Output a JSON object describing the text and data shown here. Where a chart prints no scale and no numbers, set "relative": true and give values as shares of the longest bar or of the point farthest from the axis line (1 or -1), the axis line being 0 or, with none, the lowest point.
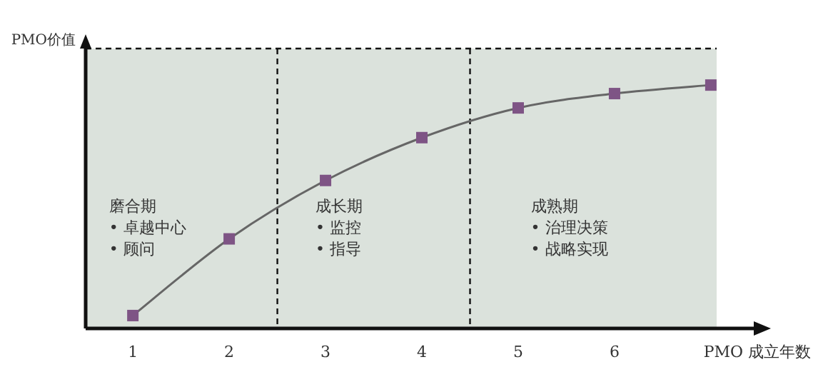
{
  "chart_data": {
    "type": "line",
    "relative": true,
    "x": [
      1,
      2,
      3,
      4,
      5,
      6,
      7
    ],
    "xlim": [
      0.51,
      7.06
    ],
    "xticks": [
      1,
      2,
      3,
      4,
      5,
      6
    ],
    "xlabel": "PMO 成立年数",
    "ylabel": "PMO价值",
    "marker": "square",
    "line_style": "solid",
    "grid": false,
    "series": [
      {
        "color": "#7e5485",
        "values": [
          0.053,
          0.368,
          0.608,
          0.784,
          0.906,
          0.965,
          1
        ]
      }
    ],
    "ref_lines": [
      {
        "axis": "x",
        "value": 2.5,
        "color": "#111111",
        "line_style": "dashed"
      },
      {
        "axis": "x",
        "value": 4.5,
        "color": "#111111",
        "line_style": "dashed"
      },
      {
        "axis": "y",
        "value": 1.15,
        "color": "#111111",
        "line_style": "dashed"
      }
    ],
    "bands": [
      {
        "axis": "y",
        "from": 0,
        "to": 1.15,
        "color": "#dbe2dc"
      }
    ],
    "annotations": [
      "磨合期\n• 卓越中心\n• 顾问",
      "成长期\n• 监控\n• 指导",
      "成熟期\n• 治理决策\n• 战略实现"
    ]
  }
}
